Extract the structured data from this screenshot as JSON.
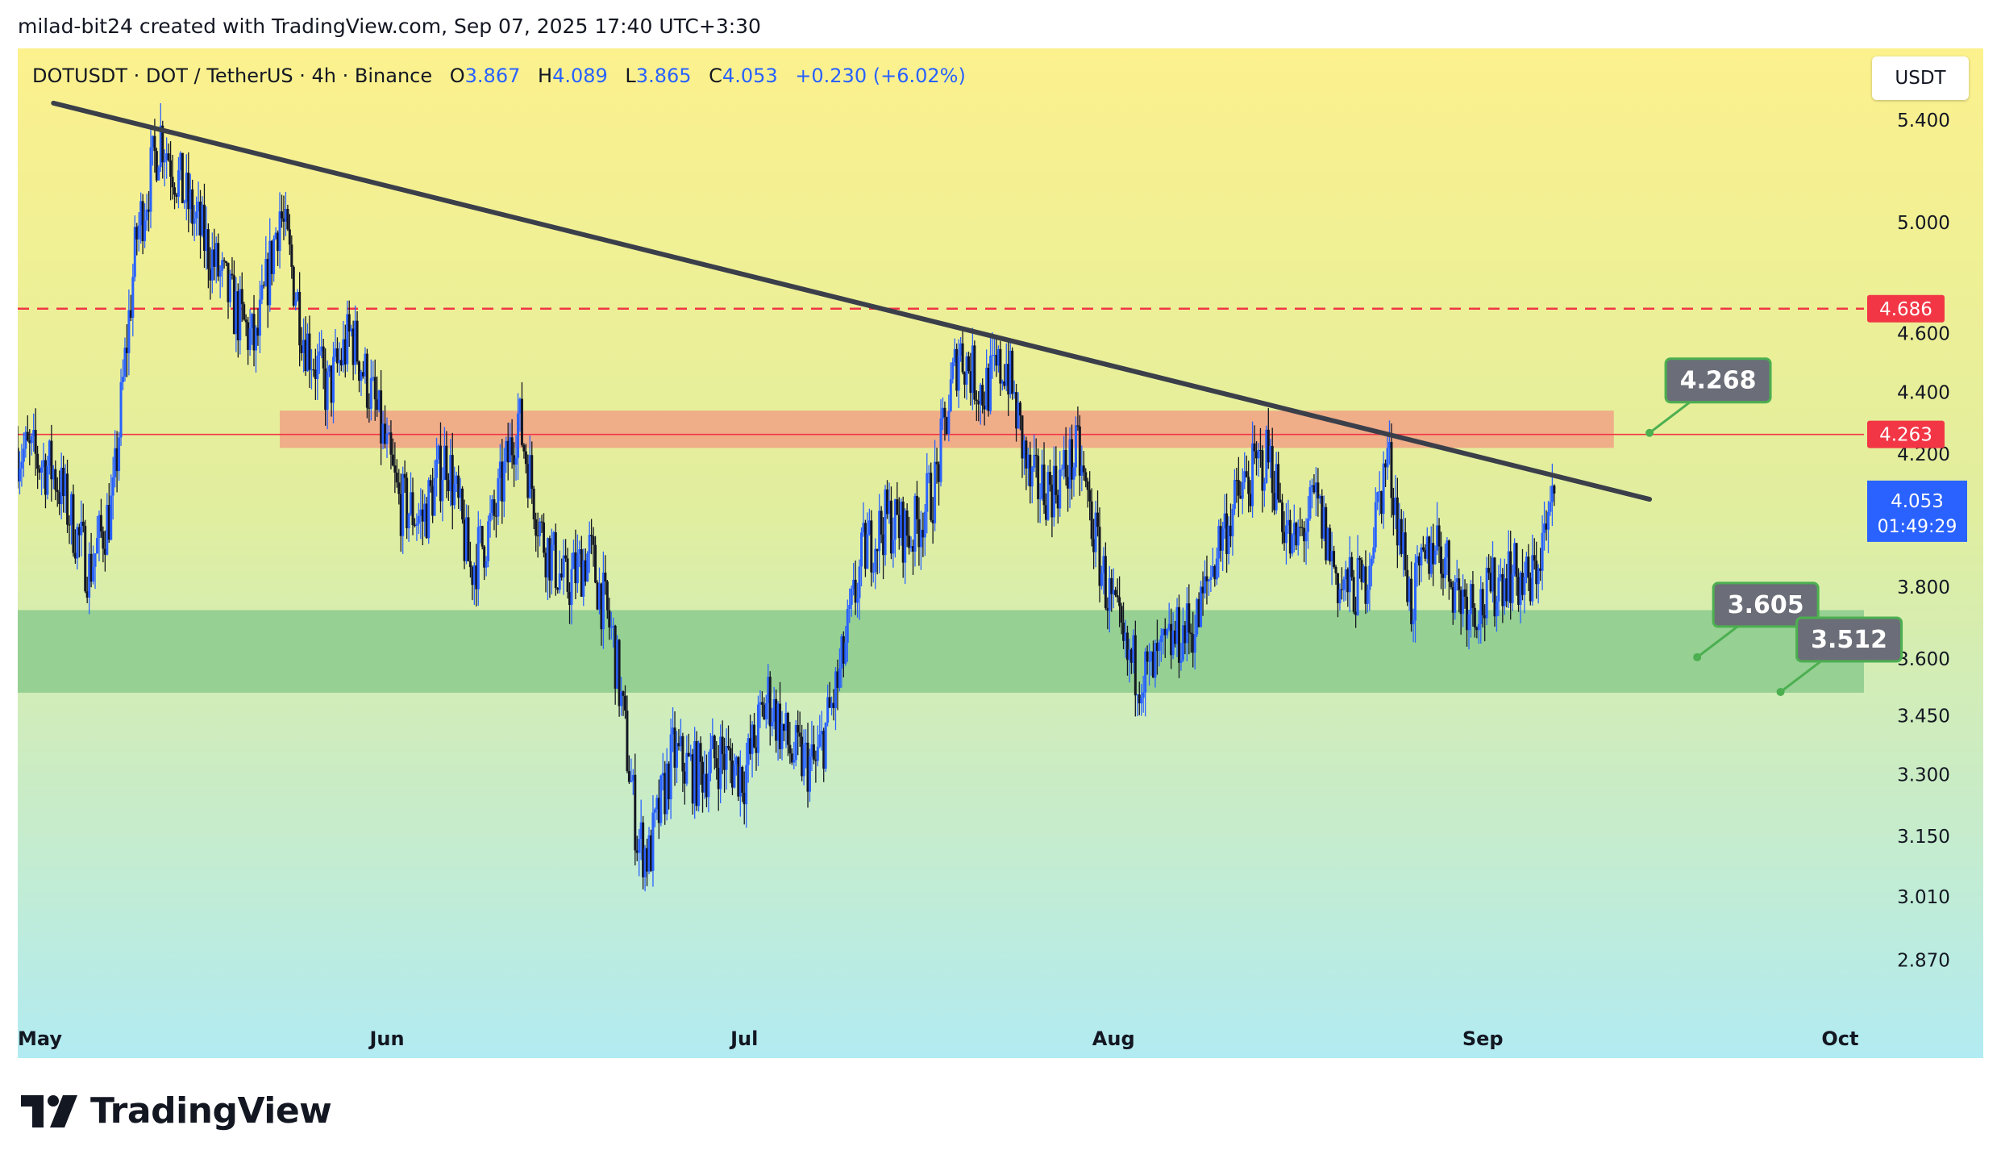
{
  "credit": "milad-bit24 created with TradingView.com, Sep 07, 2025 17:40 UTC+3:30",
  "legend": {
    "symbol": "DOTUSDT · DOT / TetherUS · 4h · Binance",
    "open_label": "O",
    "open": "3.867",
    "high_label": "H",
    "high": "4.089",
    "low_label": "L",
    "low": "3.865",
    "close_label": "C",
    "close": "4.053",
    "change": "+0.230 (+6.02%)"
  },
  "currency": "USDT",
  "brand": "TradingView",
  "colors": {
    "bull": "#2962ff",
    "bear": "#131722",
    "trendline": "#3b3f4a",
    "resistance_line": "#f23645",
    "resistance_zone": "#f0a586",
    "support_zone": "#8fcc8f",
    "price_tag": "#2962ff",
    "callout_bg": "#6b6e78",
    "callout_border": "#4caf50"
  },
  "chart_data": {
    "type": "candlestick",
    "title": "DOTUSDT · DOT / TetherUS · 4h · Binance",
    "x_ticks": [
      "May",
      "Jun",
      "Jul",
      "Aug",
      "Sep",
      "Oct"
    ],
    "y_ticks": [
      "5.400",
      "5.000",
      "4.600",
      "4.400",
      "4.200",
      "3.800",
      "3.600",
      "3.450",
      "3.300",
      "3.150",
      "3.010",
      "2.870"
    ],
    "y_scale": "log",
    "ylim": [
      2.76,
      5.7
    ],
    "xlim": [
      "2025-05-01",
      "2025-10-03"
    ],
    "price_labels": [
      {
        "value": "4.686",
        "kind": "dashed-resistance"
      },
      {
        "value": "4.263",
        "kind": "resistance-line"
      },
      {
        "value": "4.053",
        "kind": "last-price",
        "countdown": "01:49:29"
      }
    ],
    "zones": [
      {
        "name": "resistance-zone",
        "from": "2025-05-23",
        "to": "2025-09-12",
        "low": 4.22,
        "high": 4.34
      },
      {
        "name": "support-zone",
        "from": "2025-05-01",
        "to": "2025-10-03",
        "low": 3.51,
        "high": 3.735
      }
    ],
    "trendline": {
      "from": {
        "date": "2025-05-04",
        "value": 5.47
      },
      "to": {
        "date": "2025-09-15",
        "value": 4.06
      }
    },
    "callouts": [
      {
        "label": "4.268",
        "date": "2025-09-15",
        "value": 4.268
      },
      {
        "label": "3.605",
        "date": "2025-09-19",
        "value": 3.605
      },
      {
        "label": "3.512",
        "date": "2025-09-26",
        "value": 3.512
      }
    ],
    "series": [
      {
        "date": "2025-05-01",
        "close": 4.22
      },
      {
        "date": "2025-05-04",
        "close": 4.15
      },
      {
        "date": "2025-05-07",
        "close": 3.85
      },
      {
        "date": "2025-05-09",
        "close": 4.05
      },
      {
        "date": "2025-05-11",
        "close": 4.95
      },
      {
        "date": "2025-05-13",
        "close": 5.35
      },
      {
        "date": "2025-05-15",
        "close": 5.1
      },
      {
        "date": "2025-05-17",
        "close": 4.9
      },
      {
        "date": "2025-05-19",
        "close": 4.7
      },
      {
        "date": "2025-05-21",
        "close": 4.55
      },
      {
        "date": "2025-05-23",
        "close": 5.05
      },
      {
        "date": "2025-05-25",
        "close": 4.6
      },
      {
        "date": "2025-05-27",
        "close": 4.4
      },
      {
        "date": "2025-05-29",
        "close": 4.6
      },
      {
        "date": "2025-05-31",
        "close": 4.35
      },
      {
        "date": "2025-06-02",
        "close": 4.05
      },
      {
        "date": "2025-06-04",
        "close": 4.0
      },
      {
        "date": "2025-06-06",
        "close": 4.2
      },
      {
        "date": "2025-06-08",
        "close": 3.85
      },
      {
        "date": "2025-06-10",
        "close": 4.0
      },
      {
        "date": "2025-06-12",
        "close": 4.32
      },
      {
        "date": "2025-06-14",
        "close": 3.95
      },
      {
        "date": "2025-06-16",
        "close": 3.8
      },
      {
        "date": "2025-06-18",
        "close": 3.9
      },
      {
        "date": "2025-06-20",
        "close": 3.65
      },
      {
        "date": "2025-06-22",
        "close": 3.15
      },
      {
        "date": "2025-06-23",
        "close": 3.1
      },
      {
        "date": "2025-06-25",
        "close": 3.35
      },
      {
        "date": "2025-06-27",
        "close": 3.3
      },
      {
        "date": "2025-06-29",
        "close": 3.35
      },
      {
        "date": "2025-07-01",
        "close": 3.3
      },
      {
        "date": "2025-07-03",
        "close": 3.5
      },
      {
        "date": "2025-07-05",
        "close": 3.35
      },
      {
        "date": "2025-07-07",
        "close": 3.32
      },
      {
        "date": "2025-07-09",
        "close": 3.55
      },
      {
        "date": "2025-07-11",
        "close": 3.9
      },
      {
        "date": "2025-07-13",
        "close": 4.0
      },
      {
        "date": "2025-07-15",
        "close": 3.95
      },
      {
        "date": "2025-07-17",
        "close": 4.1
      },
      {
        "date": "2025-07-19",
        "close": 4.55
      },
      {
        "date": "2025-07-21",
        "close": 4.4
      },
      {
        "date": "2025-07-23",
        "close": 4.5
      },
      {
        "date": "2025-07-25",
        "close": 4.1
      },
      {
        "date": "2025-07-27",
        "close": 4.1
      },
      {
        "date": "2025-07-29",
        "close": 4.2
      },
      {
        "date": "2025-07-31",
        "close": 3.85
      },
      {
        "date": "2025-08-02",
        "close": 3.6
      },
      {
        "date": "2025-08-04",
        "close": 3.55
      },
      {
        "date": "2025-08-06",
        "close": 3.65
      },
      {
        "date": "2025-08-08",
        "close": 3.7
      },
      {
        "date": "2025-08-10",
        "close": 3.95
      },
      {
        "date": "2025-08-12",
        "close": 4.1
      },
      {
        "date": "2025-08-14",
        "close": 4.2
      },
      {
        "date": "2025-08-16",
        "close": 3.9
      },
      {
        "date": "2025-08-18",
        "close": 4.05
      },
      {
        "date": "2025-08-20",
        "close": 3.8
      },
      {
        "date": "2025-08-22",
        "close": 3.8
      },
      {
        "date": "2025-08-24",
        "close": 4.2
      },
      {
        "date": "2025-08-26",
        "close": 3.75
      },
      {
        "date": "2025-08-28",
        "close": 3.95
      },
      {
        "date": "2025-08-30",
        "close": 3.78
      },
      {
        "date": "2025-09-01",
        "close": 3.75
      },
      {
        "date": "2025-09-03",
        "close": 3.85
      },
      {
        "date": "2025-09-05",
        "close": 3.8
      },
      {
        "date": "2025-09-07",
        "close": 4.053
      }
    ]
  }
}
